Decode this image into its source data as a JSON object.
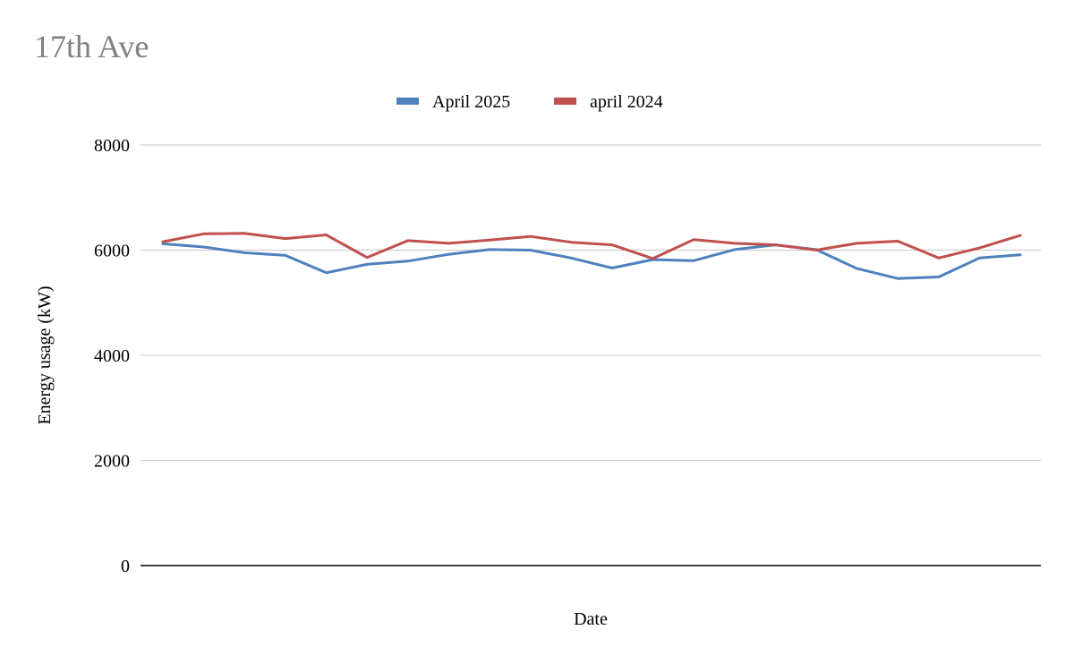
{
  "chart_data": {
    "type": "line",
    "title": "17th Ave",
    "xlabel": "Date",
    "ylabel": "Energy usage (kW)",
    "ylim": [
      0,
      8000
    ],
    "yticks": [
      0,
      2000,
      4000,
      6000,
      8000
    ],
    "grid": true,
    "legend_position": "top-center",
    "x": [
      1,
      2,
      3,
      4,
      5,
      6,
      7,
      8,
      9,
      10,
      11,
      12,
      13,
      14,
      15,
      16,
      17,
      18,
      19,
      20,
      21,
      22
    ],
    "series": [
      {
        "name": "April 2025",
        "color": "#4e81bd",
        "values": [
          6120,
          6060,
          5950,
          5900,
          5570,
          5730,
          5790,
          5920,
          6010,
          6000,
          5850,
          5660,
          5820,
          5800,
          6010,
          6100,
          6010,
          5650,
          5460,
          5490,
          5850,
          5910
        ]
      },
      {
        "name": "april 2024",
        "color": "#c0504d",
        "values": [
          6160,
          6310,
          6320,
          6220,
          6290,
          5860,
          6180,
          6130,
          6190,
          6260,
          6150,
          6100,
          5840,
          6200,
          6130,
          6100,
          6000,
          6130,
          6170,
          5850,
          6040,
          6280
        ]
      }
    ]
  }
}
